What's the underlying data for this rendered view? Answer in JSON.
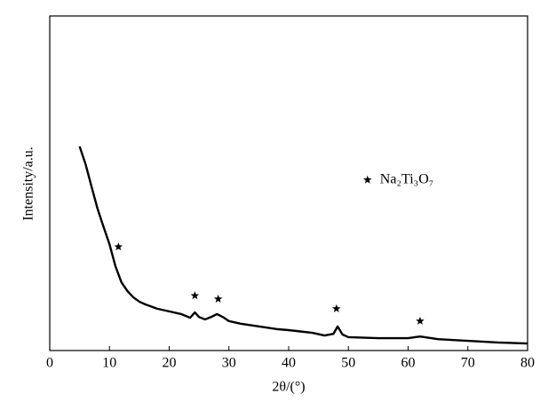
{
  "chart_data": {
    "type": "line",
    "x_label": "2θ/(°)",
    "y_label": "Intensity/a.u.",
    "x": [
      5,
      6,
      7,
      8,
      9,
      10,
      11,
      12,
      13,
      14,
      15,
      16,
      18,
      20,
      22,
      23.5,
      24.3,
      25,
      26,
      27,
      28,
      29,
      30,
      32,
      35,
      38,
      40,
      44,
      46,
      47.5,
      48.2,
      49,
      50,
      55,
      60,
      62,
      65,
      70,
      75,
      80
    ],
    "values": [
      61,
      55.7,
      49,
      42.4,
      37,
      31.8,
      25.2,
      20.4,
      17.8,
      15.9,
      14.6,
      13.8,
      12.5,
      11.7,
      10.9,
      9.8,
      11.4,
      10,
      9.3,
      10,
      10.9,
      10,
      8.8,
      8,
      7.2,
      6.4,
      6.1,
      5.3,
      4.5,
      5,
      7.2,
      4.8,
      4,
      3.7,
      3.7,
      4.2,
      3.4,
      2.9,
      2.4,
      2.1
    ],
    "color": "#000000",
    "markers": {
      "name": "Na₂Ti₃O₇",
      "x": [
        11.5,
        24.3,
        28.2,
        48,
        62
      ],
      "y": [
        31,
        16.4,
        15.4,
        12.5,
        8.8
      ]
    },
    "legend_position": "right",
    "xlim": [
      0,
      80
    ],
    "ylim": [
      0,
      100
    ],
    "xticks": [
      0,
      10,
      20,
      30,
      40,
      50,
      60,
      70,
      80
    ]
  }
}
